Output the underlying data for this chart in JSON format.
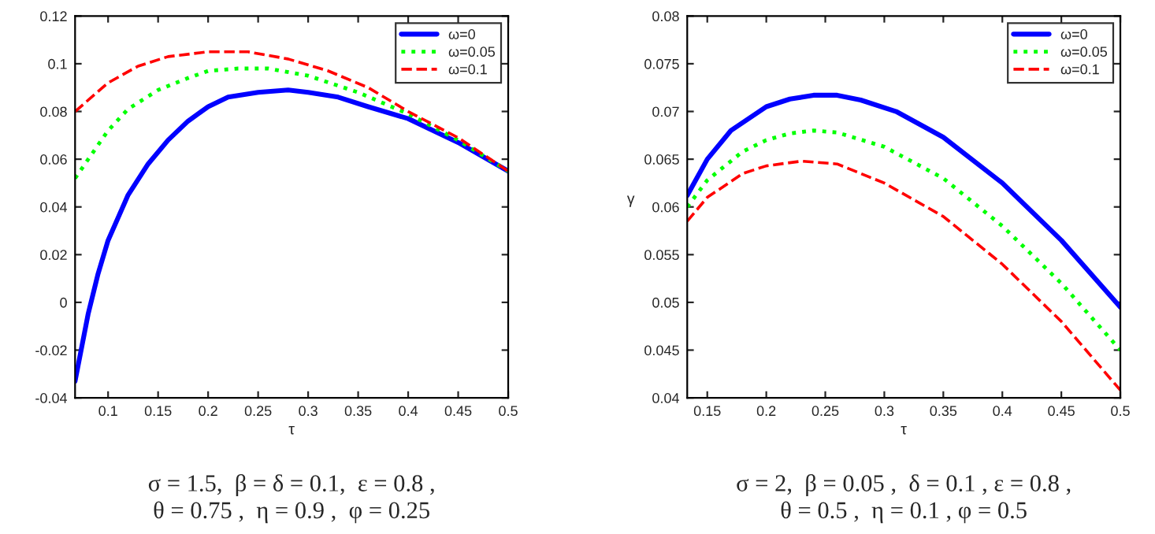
{
  "chart_data": [
    {
      "type": "line",
      "xlabel": "τ",
      "xlim": [
        0.067,
        0.5
      ],
      "ylim": [
        -0.04,
        0.12
      ],
      "xticks": [
        0.1,
        0.15,
        0.2,
        0.25,
        0.3,
        0.35,
        0.4,
        0.45,
        0.5
      ],
      "yticks": [
        -0.04,
        -0.02,
        0,
        0.02,
        0.04,
        0.06,
        0.08,
        0.1,
        0.12
      ],
      "grid": false,
      "legend": "top right",
      "annotations": [
        "σ = 1.5,  β = δ = 0.1,  ε = 0.8 ,\nθ = 0.75 ,  η = 0.9 ,  φ = 0.25"
      ],
      "series": [
        {
          "name": "ω=0",
          "color": "#0000ff",
          "line_style": "solid",
          "x": [
            0.067,
            0.08,
            0.09,
            0.1,
            0.12,
            0.14,
            0.16,
            0.18,
            0.2,
            0.22,
            0.25,
            0.28,
            0.3,
            0.33,
            0.36,
            0.4,
            0.45,
            0.5
          ],
          "values": [
            -0.033,
            -0.005,
            0.012,
            0.026,
            0.045,
            0.058,
            0.068,
            0.076,
            0.082,
            0.086,
            0.088,
            0.089,
            0.088,
            0.086,
            0.082,
            0.077,
            0.067,
            0.055
          ]
        },
        {
          "name": "ω=0.05",
          "color": "#00ff00",
          "line_style": "dotted",
          "x": [
            0.067,
            0.1,
            0.12,
            0.15,
            0.18,
            0.2,
            0.23,
            0.26,
            0.3,
            0.35,
            0.4,
            0.45,
            0.5
          ],
          "values": [
            0.052,
            0.072,
            0.081,
            0.089,
            0.094,
            0.097,
            0.098,
            0.098,
            0.095,
            0.088,
            0.079,
            0.068,
            0.055
          ]
        },
        {
          "name": "ω=0.1",
          "color": "#ff0000",
          "line_style": "dashed",
          "x": [
            0.067,
            0.1,
            0.13,
            0.16,
            0.2,
            0.24,
            0.28,
            0.32,
            0.36,
            0.4,
            0.45,
            0.5
          ],
          "values": [
            0.08,
            0.092,
            0.099,
            0.103,
            0.105,
            0.105,
            0.102,
            0.097,
            0.09,
            0.08,
            0.069,
            0.055
          ]
        }
      ]
    },
    {
      "type": "line",
      "xlabel": "τ",
      "ylabel": "γ",
      "xlim": [
        0.133,
        0.5
      ],
      "ylim": [
        0.04,
        0.08
      ],
      "xticks": [
        0.15,
        0.2,
        0.25,
        0.3,
        0.35,
        0.4,
        0.45,
        0.5
      ],
      "yticks": [
        0.04,
        0.045,
        0.05,
        0.055,
        0.06,
        0.065,
        0.07,
        0.075,
        0.08
      ],
      "grid": false,
      "legend": "top right",
      "annotations": [
        "σ = 2,  β = 0.05 ,  δ = 0.1 , ε = 0.8 ,\nθ = 0.5 ,  η = 0.1 , φ = 0.5"
      ],
      "series": [
        {
          "name": "ω=0",
          "color": "#0000ff",
          "line_style": "solid",
          "x": [
            0.133,
            0.15,
            0.17,
            0.2,
            0.22,
            0.24,
            0.26,
            0.28,
            0.31,
            0.35,
            0.4,
            0.45,
            0.5
          ],
          "values": [
            0.0612,
            0.065,
            0.068,
            0.0705,
            0.0713,
            0.0717,
            0.0717,
            0.0712,
            0.07,
            0.0673,
            0.0625,
            0.0565,
            0.0495
          ]
        },
        {
          "name": "ω=0.05",
          "color": "#00ff00",
          "line_style": "dotted",
          "x": [
            0.133,
            0.15,
            0.18,
            0.2,
            0.22,
            0.24,
            0.26,
            0.3,
            0.35,
            0.4,
            0.45,
            0.5
          ],
          "values": [
            0.06,
            0.0628,
            0.0658,
            0.067,
            0.0677,
            0.068,
            0.0678,
            0.0663,
            0.063,
            0.058,
            0.052,
            0.045
          ]
        },
        {
          "name": "ω=0.1",
          "color": "#ff0000",
          "line_style": "dashed",
          "x": [
            0.133,
            0.15,
            0.18,
            0.2,
            0.23,
            0.26,
            0.3,
            0.35,
            0.4,
            0.45,
            0.5
          ],
          "values": [
            0.0585,
            0.061,
            0.0635,
            0.0643,
            0.0648,
            0.0645,
            0.0625,
            0.059,
            0.054,
            0.048,
            0.0408
          ]
        }
      ]
    }
  ]
}
